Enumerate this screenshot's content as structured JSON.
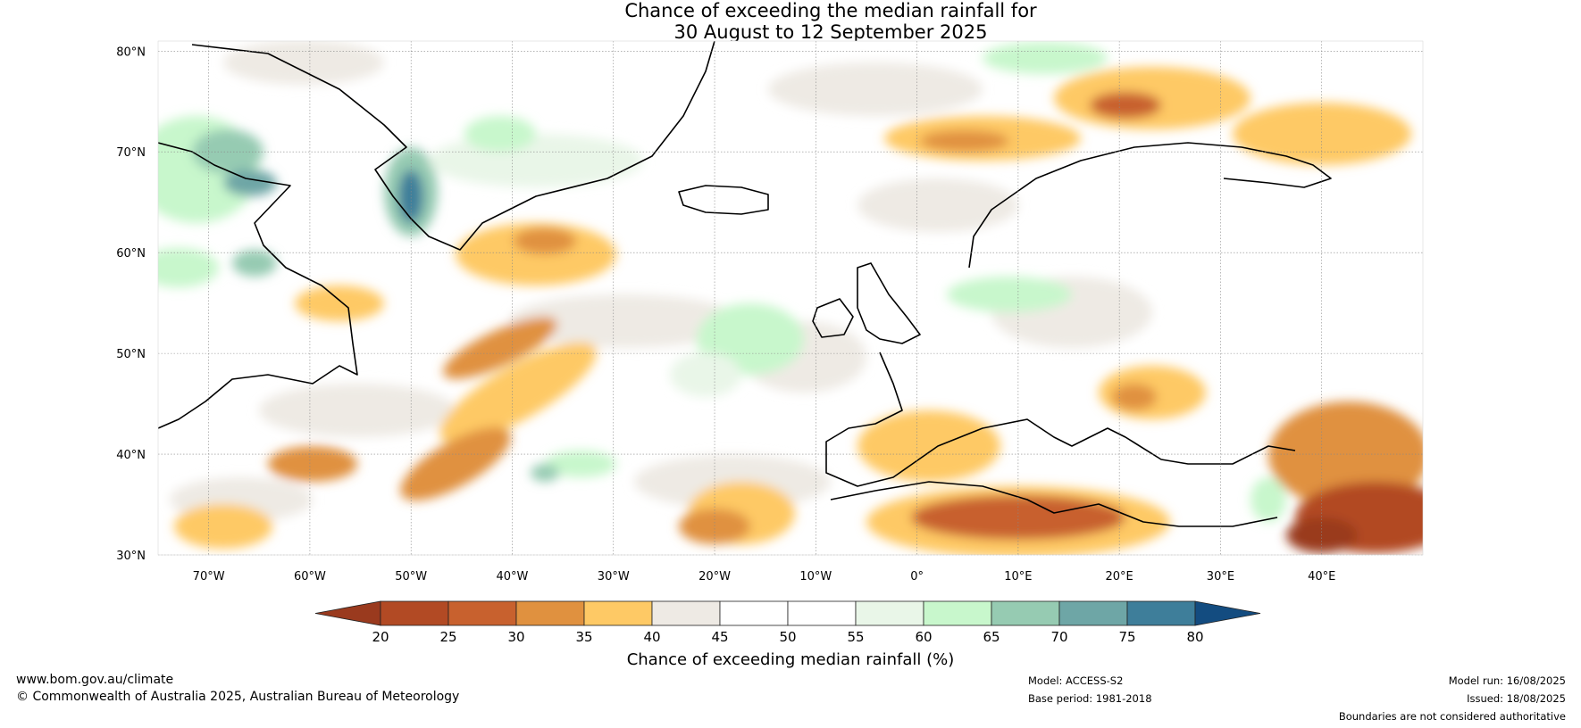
{
  "title": {
    "line1": "Chance of exceeding the median rainfall for",
    "line2": "30 August to 12 September 2025"
  },
  "axes": {
    "lat_labels": [
      "80°N",
      "70°N",
      "60°N",
      "50°N",
      "40°N",
      "30°N"
    ],
    "lat_values": [
      80,
      70,
      60,
      50,
      40,
      30
    ],
    "lon_labels": [
      "70°W",
      "60°W",
      "50°W",
      "40°W",
      "30°W",
      "20°W",
      "10°W",
      "0°",
      "10°E",
      "20°E",
      "30°E",
      "40°E"
    ],
    "lon_values": [
      -70,
      -60,
      -50,
      -40,
      -30,
      -20,
      -10,
      0,
      10,
      20,
      30,
      40
    ],
    "lon_range": [
      -75,
      50
    ],
    "lat_range": [
      30,
      81
    ]
  },
  "colorbar": {
    "title": "Chance of exceeding median rainfall (%)",
    "ticks": [
      "20",
      "25",
      "30",
      "35",
      "40",
      "45",
      "50",
      "55",
      "60",
      "65",
      "70",
      "75",
      "80"
    ],
    "colors": [
      "#9a3a1e",
      "#b24a24",
      "#c8612e",
      "#e0913f",
      "#fec965",
      "#eeeae4",
      "#ffffff",
      "#ffffff",
      "#e9f6e8",
      "#c8f7cc",
      "#96cbb2",
      "#6ea6a6",
      "#3e7e9a",
      "#134c80"
    ]
  },
  "footer": {
    "website": "www.bom.gov.au/climate",
    "copyright": "© Commonwealth of Australia 2025, Australian Bureau of Meteorology",
    "model": "Model: ACCESS-S2",
    "base_period": "Base period: 1981-2018",
    "model_run": "Model run: 16/08/2025",
    "issued": "Issued: 18/08/2025",
    "disclaimer": "Boundaries are not considered authoritative"
  }
}
